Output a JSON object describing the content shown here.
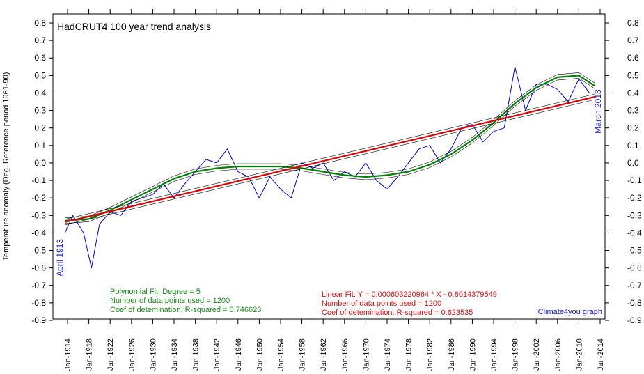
{
  "chart_data": {
    "type": "line",
    "title": "HadCRUT4 100 year trend analysis",
    "ylabel": "Temperature anomaly (Deg. Reference period 1961-90)",
    "ylim": [
      -0.9,
      0.8
    ],
    "y_ticks": [
      "0.8",
      "0.7",
      "0.6",
      "0.5",
      "0.4",
      "0.3",
      "0.2",
      "0.1",
      "0.0",
      "-0.1",
      "-0.2",
      "-0.3",
      "-0.4",
      "-0.5",
      "-0.6",
      "-0.7",
      "-0.8",
      "-0.9"
    ],
    "x_ticks": [
      "Jan-1914",
      "Jan-1918",
      "Jan-1922",
      "Jan-1926",
      "Jan-1930",
      "Jan-1934",
      "Jan-1938",
      "Jan-1942",
      "Jan-1946",
      "Jan-1950",
      "Jan-1954",
      "Jan-1958",
      "Jan-1962",
      "Jan-1966",
      "Jan-1970",
      "Jan-1974",
      "Jan-1978",
      "Jan-1982",
      "Jan-1986",
      "Jan-1990",
      "Jan-1994",
      "Jan-1998",
      "Jan-2002",
      "Jan-2006",
      "Jan-2010",
      "Jan-2014"
    ],
    "start_label": "April 1913",
    "end_label": "March 2013",
    "credit": "Climate4you graph",
    "series": [
      {
        "color": "#0000cc",
        "x": [
          1913.5,
          1915,
          1917,
          1918.5,
          1920,
          1922,
          1924,
          1926,
          1928,
          1930,
          1932,
          1934,
          1936,
          1938,
          1940,
          1942,
          1944,
          1946,
          1948,
          1950,
          1952,
          1954,
          1956,
          1958,
          1960,
          1962,
          1964,
          1966,
          1968,
          1970,
          1972,
          1974,
          1976,
          1978,
          1980,
          1982,
          1984,
          1986,
          1988,
          1990,
          1992,
          1994,
          1996,
          1998,
          2000,
          2002,
          2004,
          2006,
          2008,
          2010,
          2012,
          2013
        ],
        "y": [
          -0.4,
          -0.3,
          -0.4,
          -0.6,
          -0.35,
          -0.28,
          -0.3,
          -0.22,
          -0.2,
          -0.18,
          -0.12,
          -0.2,
          -0.12,
          -0.05,
          0.02,
          0.0,
          0.08,
          -0.05,
          -0.08,
          -0.2,
          -0.08,
          -0.15,
          -0.2,
          0.0,
          -0.03,
          0.0,
          -0.1,
          -0.05,
          -0.08,
          0.0,
          -0.1,
          -0.15,
          -0.08,
          0.0,
          0.08,
          0.1,
          0.0,
          0.08,
          0.2,
          0.22,
          0.12,
          0.18,
          0.2,
          0.55,
          0.3,
          0.45,
          0.45,
          0.42,
          0.35,
          0.48,
          0.4,
          0.4
        ]
      },
      {
        "color": "#008000",
        "x": [
          1913.5,
          1918,
          1922,
          1926,
          1930,
          1934,
          1938,
          1942,
          1946,
          1950,
          1954,
          1958,
          1962,
          1966,
          1970,
          1974,
          1978,
          1982,
          1986,
          1990,
          1994,
          1998,
          2002,
          2006,
          2010,
          2013
        ],
        "y": [
          -0.33,
          -0.32,
          -0.27,
          -0.21,
          -0.15,
          -0.09,
          -0.05,
          -0.03,
          -0.02,
          -0.02,
          -0.02,
          -0.03,
          -0.05,
          -0.07,
          -0.08,
          -0.07,
          -0.05,
          -0.01,
          0.05,
          0.13,
          0.23,
          0.34,
          0.43,
          0.49,
          0.5,
          0.44
        ]
      },
      {
        "color": "#dd0000",
        "x": [
          1913.5,
          2013
        ],
        "y": [
          -0.338,
          0.378
        ]
      }
    ],
    "polynomial_fit": {
      "line1": "Polynomial Fit:  Degree = 5",
      "line2": "Number of data points used = 1200",
      "line3": "Coef of detemination, R-squared = 0.746623"
    },
    "linear_fit": {
      "line1": "Linear Fit:  Y = 0.000603220964 * X - 0.8014379549",
      "line2": "Number of data points used = 1200",
      "line3": "Coef of detemination, R-squared = 0.623535"
    }
  }
}
